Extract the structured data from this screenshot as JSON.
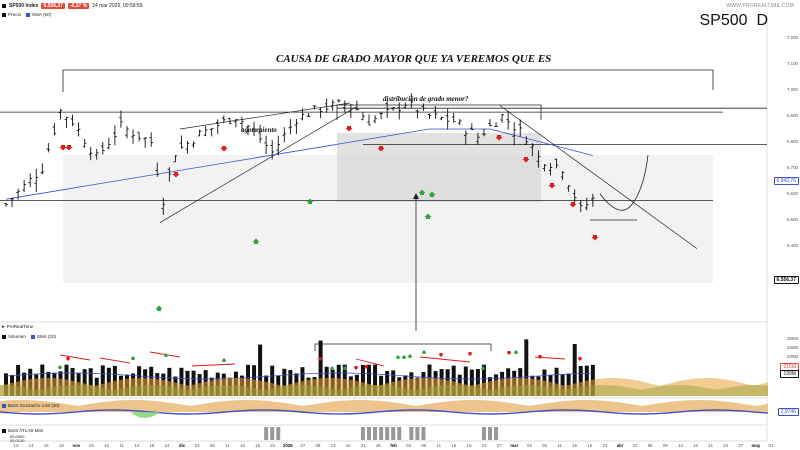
{
  "header": {
    "symbol": "SP500 Index",
    "price": "6.556,37",
    "change": "-0,37 %",
    "datetime": "24 mar 2026, 00:59:59",
    "sublegend_price": "Precio",
    "sublegend_sma": "SMA (50)",
    "brand": "WWW.PROREALTIME.COM",
    "big_symbol": "SP500",
    "timeframe": "D"
  },
  "annotations": {
    "major_cause": "CAUSA DE GRADO MAYOR QUE YA VEREMOS QUE ES",
    "distribution": "distribución de grado menor?",
    "exhaustion": "agotamiento"
  },
  "price_axis": {
    "ticks": [
      "7.200",
      "7.100",
      "7.000",
      "6.900",
      "6.800",
      "6.700",
      "6.600",
      "6.500",
      "6.400"
    ],
    "top_value": 7300,
    "sma_badge": "6.842,76",
    "last_badge": "6.556,37"
  },
  "volume_pane": {
    "title": "ProRealTime",
    "legend_volume": "Volumen",
    "legend_sma": "SMA (20)",
    "ticks": [
      "300M",
      "250M",
      "200M",
      "150M"
    ],
    "badge_1": "215M",
    "badge_2": "199M"
  },
  "indicator_1": {
    "label": "BarS Gonzacho v.03 (20)",
    "value": "2,9746"
  },
  "indicator_2": {
    "label": "BarS ATLAS Mini",
    "sub1": "00,0000",
    "sub2": "00,0210"
  },
  "x_axis": {
    "labels": [
      "13",
      "14",
      "18",
      "19",
      "nov",
      "04",
      "10",
      "11",
      "14",
      "18",
      "24",
      "dic",
      "03",
      "08",
      "11",
      "16",
      "19",
      "22",
      "2026",
      "07",
      "08",
      "13",
      "16",
      "21",
      "26",
      "feb",
      "03",
      "06",
      "11",
      "16",
      "19",
      "23",
      "27",
      "mar",
      "03",
      "06",
      "11",
      "16",
      "19",
      "23",
      "abr",
      "02",
      "06",
      "09",
      "13",
      "16",
      "21",
      "24",
      "27",
      "may",
      "01"
    ],
    "bold": [
      "nov",
      "dic",
      "2026",
      "feb",
      "mar",
      "abr",
      "may"
    ]
  },
  "chart_data": {
    "type": "ohlc",
    "price_unit": "index points",
    "start_price": 6560,
    "candle_count": 98,
    "horizontal_levels": [
      6930,
      6915,
      6790,
      6575,
      6500
    ],
    "sma_start": 6580,
    "sma_end": 6850,
    "last_price": 6556.37
  },
  "colors": {
    "up_arrow": "#2fa33a",
    "down_arrow": "#e01b1b",
    "sma": "#3f4fcf",
    "price_bar": "#111111",
    "badge_red": "#e24b3b",
    "box_fill": "#e8e8e8"
  }
}
